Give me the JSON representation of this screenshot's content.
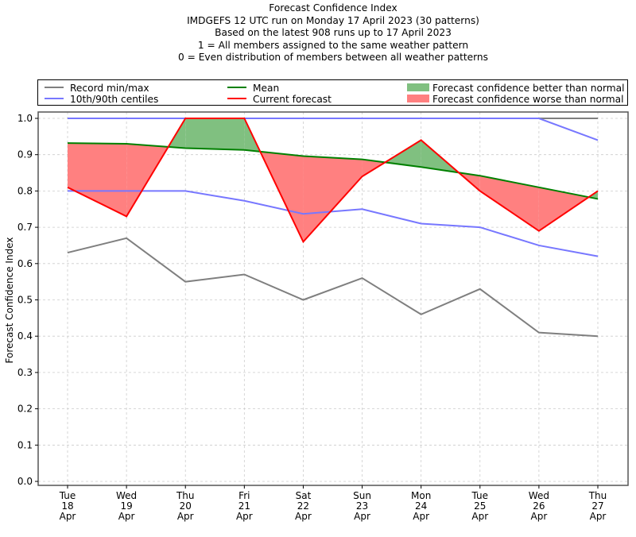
{
  "chart_data": {
    "type": "line",
    "title_lines": [
      "Forecast Confidence Index",
      "IMDGEFS 12 UTC run on Monday 17 April 2023 (30 patterns)",
      "Based on the latest 908 runs up to 17 April 2023",
      "1 = All members assigned to the same weather pattern",
      "0 = Even distribution of members between all weather patterns"
    ],
    "xlabel": "",
    "ylabel": "Forecast Confidence Index",
    "ylim": [
      0.0,
      1.0
    ],
    "yticks": [
      "0.0",
      "0.1",
      "0.2",
      "0.3",
      "0.4",
      "0.5",
      "0.6",
      "0.7",
      "0.8",
      "0.9",
      "1.0"
    ],
    "grid": true,
    "legend_position": "top (above plot, 3 columns)",
    "categories": [
      {
        "day": "Tue",
        "date": "18",
        "month": "Apr"
      },
      {
        "day": "Wed",
        "date": "19",
        "month": "Apr"
      },
      {
        "day": "Thu",
        "date": "20",
        "month": "Apr"
      },
      {
        "day": "Fri",
        "date": "21",
        "month": "Apr"
      },
      {
        "day": "Sat",
        "date": "22",
        "month": "Apr"
      },
      {
        "day": "Sun",
        "date": "23",
        "month": "Apr"
      },
      {
        "day": "Mon",
        "date": "24",
        "month": "Apr"
      },
      {
        "day": "Tue",
        "date": "25",
        "month": "Apr"
      },
      {
        "day": "Wed",
        "date": "26",
        "month": "Apr"
      },
      {
        "day": "Thu",
        "date": "27",
        "month": "Apr"
      }
    ],
    "series": [
      {
        "name": "Record min",
        "legend": "Record min/max",
        "color": "#7f7f7f",
        "values": [
          0.63,
          0.67,
          0.55,
          0.57,
          0.5,
          0.56,
          0.46,
          0.53,
          0.41,
          0.4
        ]
      },
      {
        "name": "Record max",
        "legend": "Record min/max",
        "color": "#7f7f7f",
        "values": [
          1.0,
          1.0,
          1.0,
          1.0,
          1.0,
          1.0,
          1.0,
          1.0,
          1.0,
          1.0
        ]
      },
      {
        "name": "10th centile",
        "legend": "10th/90th centiles",
        "color": "#7777ff",
        "values": [
          0.8,
          0.8,
          0.8,
          0.773,
          0.737,
          0.75,
          0.71,
          0.7,
          0.65,
          0.62
        ]
      },
      {
        "name": "90th centile",
        "legend": "10th/90th centiles",
        "color": "#7777ff",
        "values": [
          1.0,
          1.0,
          1.0,
          1.0,
          1.0,
          1.0,
          1.0,
          1.0,
          1.0,
          0.94
        ]
      },
      {
        "name": "Mean",
        "legend": "Mean",
        "color": "#008000",
        "values": [
          0.932,
          0.93,
          0.918,
          0.913,
          0.896,
          0.887,
          0.866,
          0.842,
          0.81,
          0.778
        ]
      },
      {
        "name": "Current forecast",
        "legend": "Current forecast",
        "color": "#ff0000",
        "values": [
          0.81,
          0.73,
          1.0,
          1.0,
          0.66,
          0.84,
          0.94,
          0.8,
          0.69,
          0.8
        ]
      }
    ],
    "fills": [
      {
        "name": "Forecast confidence better than normal",
        "color": "#80c080",
        "condition": "current > mean"
      },
      {
        "name": "Forecast confidence worse than normal",
        "color": "#ff8080",
        "condition": "current < mean"
      }
    ]
  },
  "legend": {
    "record": {
      "label": "Record min/max",
      "color": "#7f7f7f"
    },
    "centiles": {
      "label": "10th/90th centiles",
      "color": "#7777ff"
    },
    "mean": {
      "label": "Mean",
      "color": "#008000"
    },
    "current": {
      "label": "Current forecast",
      "color": "#ff0000"
    },
    "better": {
      "label": "Forecast confidence better than normal",
      "color": "#80c080"
    },
    "worse": {
      "label": "Forecast confidence worse than normal",
      "color": "#ff8080"
    }
  }
}
